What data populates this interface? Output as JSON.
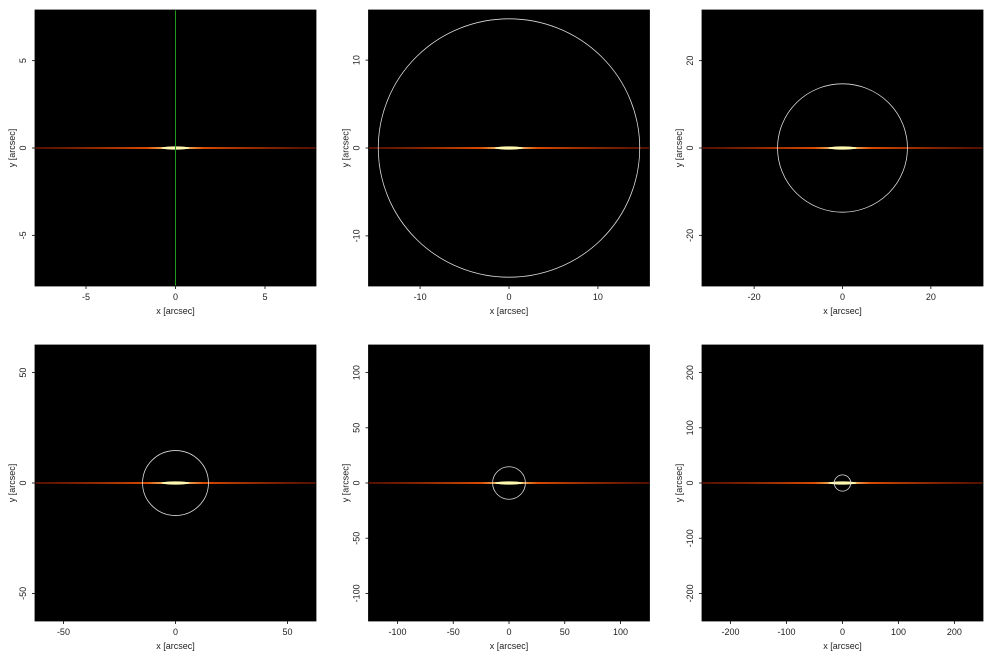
{
  "chart_data": [
    {
      "type": "image",
      "xlabel": "x [arcsec]",
      "ylabel": "y [arcsec]",
      "xlim": [
        -7.85,
        7.85
      ],
      "ylim": [
        -7.9,
        7.9
      ],
      "xticks": [
        -5,
        0,
        5
      ],
      "yticks": [
        -5,
        0,
        5
      ],
      "vline": 0,
      "vline_color": "#1f9a1f"
    },
    {
      "type": "image",
      "xlabel": "x [arcsec]",
      "ylabel": "y [arcsec]",
      "xlim": [
        -15.8,
        15.8
      ],
      "ylim": [
        -15.7,
        15.7
      ],
      "xticks": [
        -10,
        0,
        10
      ],
      "yticks": [
        -10,
        0,
        10
      ],
      "circle_radius": 14.7
    },
    {
      "type": "image",
      "xlabel": "x [arcsec]",
      "ylabel": "y [arcsec]",
      "xlim": [
        -31.8,
        31.8
      ],
      "ylim": [
        -31.6,
        31.6
      ],
      "xticks": [
        -20,
        0,
        20
      ],
      "yticks": [
        -20,
        0,
        20
      ],
      "circle_radius": 14.7
    },
    {
      "type": "image",
      "xlabel": "x [arcsec]",
      "ylabel": "y [arcsec]",
      "xlim": [
        -62.7,
        62.7
      ],
      "ylim": [
        -62.5,
        62.5
      ],
      "xticks": [
        -50,
        0,
        50
      ],
      "yticks": [
        -50,
        0,
        50
      ],
      "circle_radius": 14.7
    },
    {
      "type": "image",
      "xlabel": "x [arcsec]",
      "ylabel": "y [arcsec]",
      "xlim": [
        -126,
        126
      ],
      "ylim": [
        -125,
        125
      ],
      "xticks": [
        -100,
        -50,
        0,
        50,
        100
      ],
      "yticks": [
        -100,
        -50,
        0,
        50,
        100
      ],
      "circle_radius": 14.7
    },
    {
      "type": "image",
      "xlabel": "x [arcsec]",
      "ylabel": "y [arcsec]",
      "xlim": [
        -251,
        251
      ],
      "ylim": [
        -250,
        250
      ],
      "xticks": [
        -200,
        -100,
        0,
        100,
        200
      ],
      "yticks": [
        -200,
        -100,
        0,
        100,
        200
      ],
      "circle_radius": 14.7
    }
  ]
}
